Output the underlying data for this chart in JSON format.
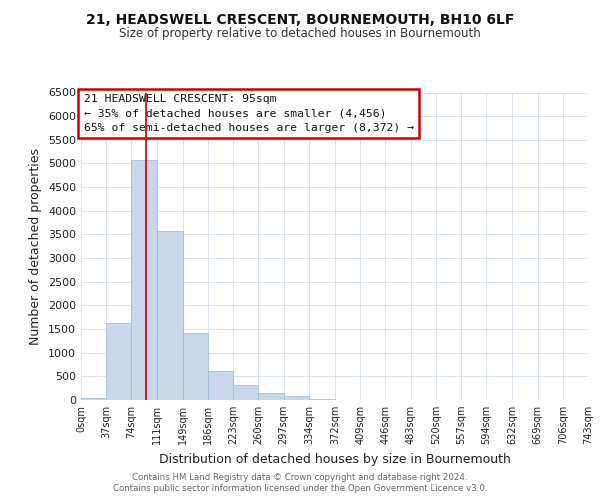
{
  "title": "21, HEADSWELL CRESCENT, BOURNEMOUTH, BH10 6LF",
  "subtitle": "Size of property relative to detached houses in Bournemouth",
  "xlabel": "Distribution of detached houses by size in Bournemouth",
  "ylabel": "Number of detached properties",
  "bar_color": "#c8d8ea",
  "bar_edgecolor": "#9ab8cc",
  "bin_edges": [
    0,
    37,
    74,
    111,
    149,
    186,
    223,
    260,
    297,
    334,
    372,
    409,
    446,
    483,
    520,
    557,
    594,
    632,
    669,
    706,
    743
  ],
  "bar_heights": [
    50,
    1630,
    5080,
    3580,
    1420,
    610,
    310,
    155,
    80,
    30,
    10,
    5,
    0,
    0,
    0,
    0,
    0,
    0,
    0,
    0
  ],
  "tick_labels": [
    "0sqm",
    "37sqm",
    "74sqm",
    "111sqm",
    "149sqm",
    "186sqm",
    "223sqm",
    "260sqm",
    "297sqm",
    "334sqm",
    "372sqm",
    "409sqm",
    "446sqm",
    "483sqm",
    "520sqm",
    "557sqm",
    "594sqm",
    "632sqm",
    "669sqm",
    "706sqm",
    "743sqm"
  ],
  "ylim": [
    0,
    6500
  ],
  "yticks": [
    0,
    500,
    1000,
    1500,
    2000,
    2500,
    3000,
    3500,
    4000,
    4500,
    5000,
    5500,
    6000,
    6500
  ],
  "property_line_x": 95,
  "property_line_color": "#cc0000",
  "annotation_title": "21 HEADSWELL CRESCENT: 95sqm",
  "annotation_line1": "← 35% of detached houses are smaller (4,456)",
  "annotation_line2": "65% of semi-detached houses are larger (8,372) →",
  "annotation_box_color": "#cc0000",
  "footer1": "Contains HM Land Registry data © Crown copyright and database right 2024.",
  "footer2": "Contains public sector information licensed under the Open Government Licence v3.0.",
  "background_color": "#ffffff",
  "grid_color": "#ccd8e4"
}
